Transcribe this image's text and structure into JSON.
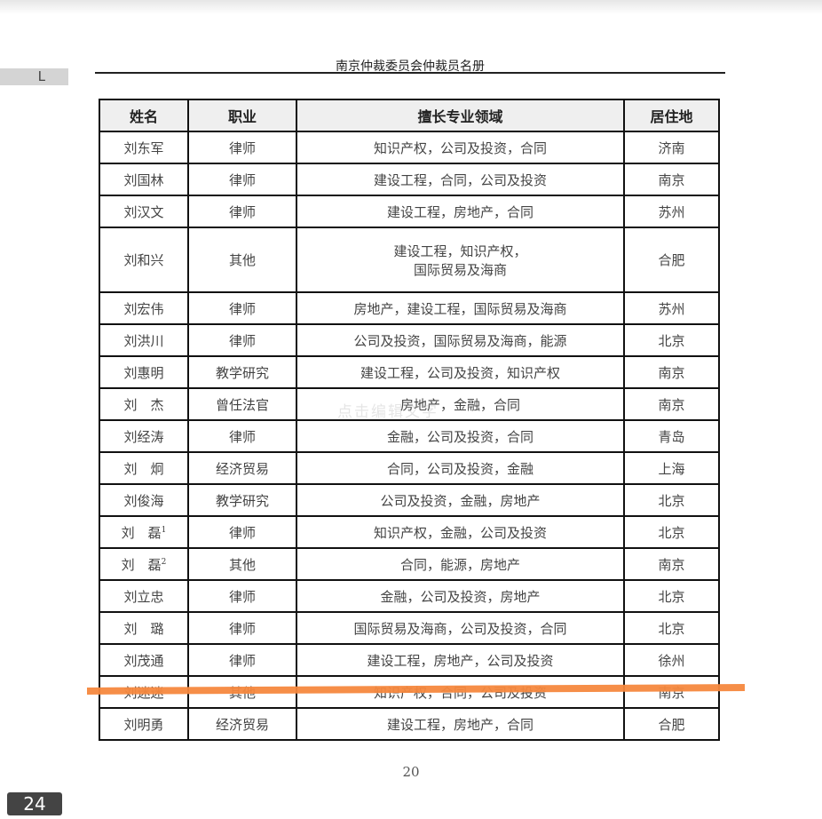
{
  "viewer": {
    "side_tab": "L",
    "page_badge": "24"
  },
  "document": {
    "title": "南京仲裁委员会仲裁员名册",
    "page_number": "20",
    "watermark": "点击编辑文字",
    "highlight_color": "#f5883e",
    "columns": [
      "姓名",
      "职业",
      "擅长专业领域",
      "居住地"
    ],
    "rows": [
      {
        "name": "刘东军",
        "sup": "",
        "job": "律师",
        "fields": "知识产权，公司及投资，合同",
        "city": "济南"
      },
      {
        "name": "刘国林",
        "sup": "",
        "job": "律师",
        "fields": "建设工程，合同，公司及投资",
        "city": "南京"
      },
      {
        "name": "刘汉文",
        "sup": "",
        "job": "律师",
        "fields": "建设工程，房地产，合同",
        "city": "苏州"
      },
      {
        "name": "刘和兴",
        "sup": "",
        "job": "其他",
        "fields": "建设工程，知识产权，",
        "fields2": "国际贸易及海商",
        "city": "合肥"
      },
      {
        "name": "刘宏伟",
        "sup": "",
        "job": "律师",
        "fields": "房地产，建设工程，国际贸易及海商",
        "city": "苏州"
      },
      {
        "name": "刘洪川",
        "sup": "",
        "job": "律师",
        "fields": "公司及投资，国际贸易及海商，能源",
        "city": "北京"
      },
      {
        "name": "刘惠明",
        "sup": "",
        "job": "教学研究",
        "fields": "建设工程，公司及投资，知识产权",
        "city": "南京"
      },
      {
        "name": "刘　杰",
        "sup": "",
        "job": "曾任法官",
        "fields": "房地产，金融，合同",
        "city": "南京"
      },
      {
        "name": "刘经涛",
        "sup": "",
        "job": "律师",
        "fields": "金融，公司及投资，合同",
        "city": "青岛"
      },
      {
        "name": "刘　炯",
        "sup": "",
        "job": "经济贸易",
        "fields": "合同，公司及投资，金融",
        "city": "上海"
      },
      {
        "name": "刘俊海",
        "sup": "",
        "job": "教学研究",
        "fields": "公司及投资，金融，房地产",
        "city": "北京"
      },
      {
        "name": "刘　磊",
        "sup": "1",
        "job": "律师",
        "fields": "知识产权，金融，公司及投资",
        "city": "北京"
      },
      {
        "name": "刘　磊",
        "sup": "2",
        "job": "其他",
        "fields": "合同，能源，房地产",
        "city": "南京"
      },
      {
        "name": "刘立忠",
        "sup": "",
        "job": "律师",
        "fields": "金融，公司及投资，房地产",
        "city": "北京"
      },
      {
        "name": "刘　璐",
        "sup": "",
        "job": "律师",
        "fields": "国际贸易及海商，公司及投资，合同",
        "city": "北京"
      },
      {
        "name": "刘茂通",
        "sup": "",
        "job": "律师",
        "fields": "建设工程，房地产，公司及投资",
        "city": "徐州"
      },
      {
        "name": "刘迷迷",
        "sup": "",
        "job": "其他",
        "fields": "知识产权，合同，公司及投资",
        "city": "南京"
      },
      {
        "name": "刘明勇",
        "sup": "",
        "job": "经济贸易",
        "fields": "建设工程，房地产，合同",
        "city": "合肥"
      }
    ]
  }
}
